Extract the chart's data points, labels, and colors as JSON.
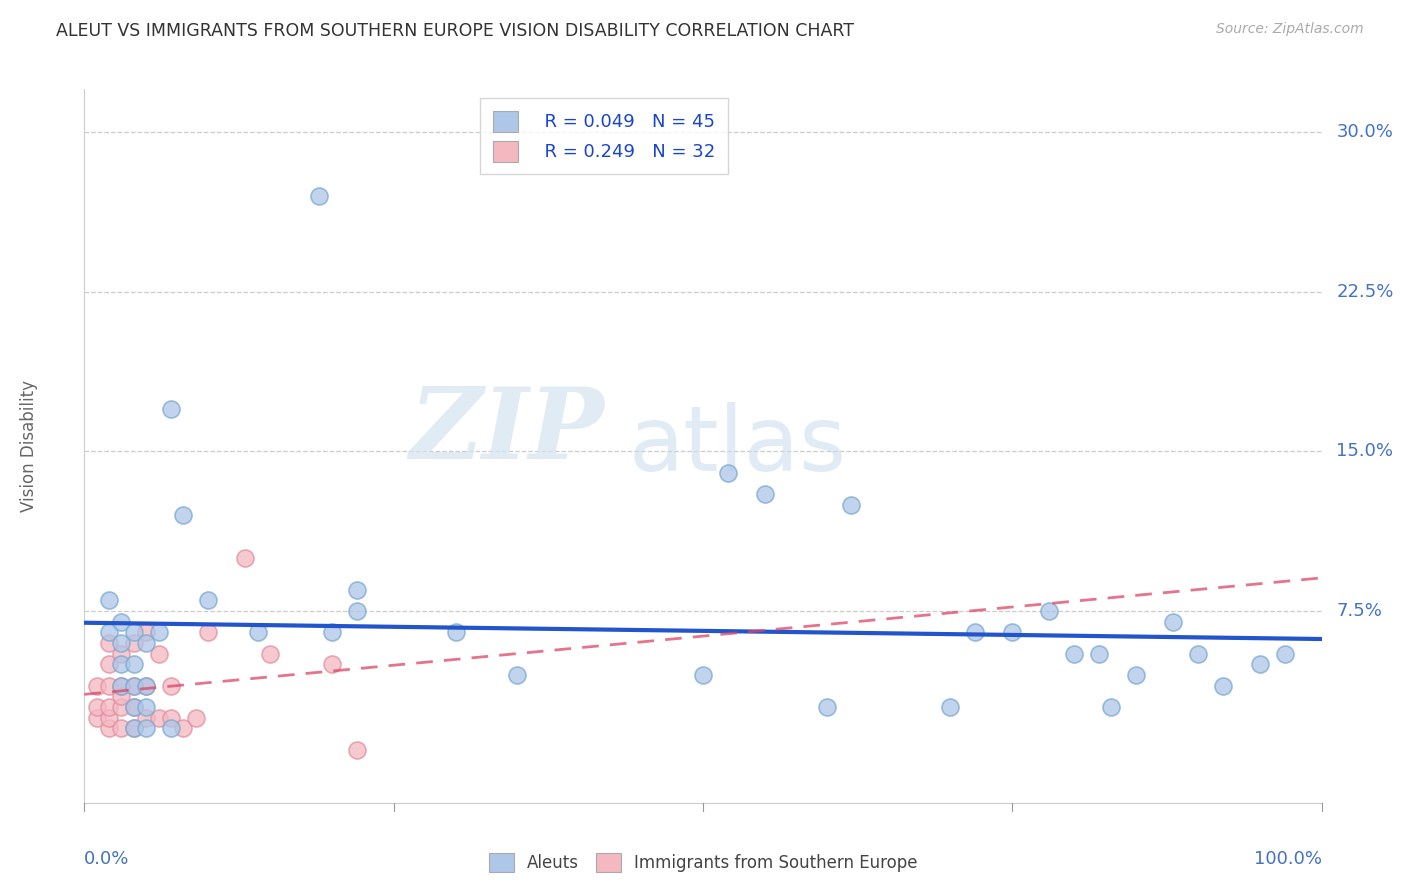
{
  "title": "ALEUT VS IMMIGRANTS FROM SOUTHERN EUROPE VISION DISABILITY CORRELATION CHART",
  "source": "Source: ZipAtlas.com",
  "ylabel": "Vision Disability",
  "xlim": [
    0.0,
    1.0
  ],
  "ylim": [
    -0.015,
    0.32
  ],
  "aleuts_color": "#aec6e8",
  "aleuts_edge_color": "#7aaad0",
  "immigrants_color": "#f4b8c1",
  "immigrants_edge_color": "#e090a0",
  "aleuts_line_color": "#2255cc",
  "immigrants_line_color": "#dd4466",
  "watermark_zip": "ZIP",
  "watermark_atlas": "atlas",
  "legend_r1": "R = 0.049",
  "legend_n1": "N = 45",
  "legend_r2": "R = 0.249",
  "legend_n2": "N = 32",
  "aleuts_x": [
    0.02,
    0.02,
    0.03,
    0.03,
    0.03,
    0.03,
    0.04,
    0.04,
    0.04,
    0.04,
    0.04,
    0.05,
    0.05,
    0.05,
    0.05,
    0.06,
    0.07,
    0.07,
    0.08,
    0.1,
    0.14,
    0.19,
    0.2,
    0.22,
    0.22,
    0.3,
    0.35,
    0.5,
    0.52,
    0.55,
    0.6,
    0.62,
    0.7,
    0.72,
    0.75,
    0.78,
    0.8,
    0.82,
    0.83,
    0.85,
    0.88,
    0.9,
    0.92,
    0.95,
    0.97
  ],
  "aleuts_y": [
    0.065,
    0.08,
    0.04,
    0.05,
    0.06,
    0.07,
    0.02,
    0.03,
    0.04,
    0.05,
    0.065,
    0.02,
    0.03,
    0.04,
    0.06,
    0.065,
    0.02,
    0.17,
    0.12,
    0.08,
    0.065,
    0.27,
    0.065,
    0.085,
    0.075,
    0.065,
    0.045,
    0.045,
    0.14,
    0.13,
    0.03,
    0.125,
    0.03,
    0.065,
    0.065,
    0.075,
    0.055,
    0.055,
    0.03,
    0.045,
    0.07,
    0.055,
    0.04,
    0.05,
    0.055
  ],
  "immigrants_x": [
    0.01,
    0.01,
    0.01,
    0.02,
    0.02,
    0.02,
    0.02,
    0.02,
    0.02,
    0.03,
    0.03,
    0.03,
    0.03,
    0.03,
    0.04,
    0.04,
    0.04,
    0.04,
    0.05,
    0.05,
    0.05,
    0.06,
    0.06,
    0.07,
    0.07,
    0.08,
    0.09,
    0.1,
    0.13,
    0.15,
    0.2,
    0.22
  ],
  "immigrants_y": [
    0.025,
    0.03,
    0.04,
    0.02,
    0.025,
    0.03,
    0.04,
    0.05,
    0.06,
    0.02,
    0.03,
    0.035,
    0.04,
    0.055,
    0.02,
    0.03,
    0.04,
    0.06,
    0.025,
    0.04,
    0.065,
    0.025,
    0.055,
    0.025,
    0.04,
    0.02,
    0.025,
    0.065,
    0.1,
    0.055,
    0.05,
    0.01
  ],
  "grid_color": "#cccccc",
  "background_color": "#ffffff",
  "title_color": "#333333",
  "axis_label_color": "#4472c4",
  "right_ytick_color": "#4472c4",
  "ytick_vals": [
    0.075,
    0.15,
    0.225,
    0.3
  ],
  "ytick_labels": [
    "7.5%",
    "15.0%",
    "22.5%",
    "30.0%"
  ]
}
